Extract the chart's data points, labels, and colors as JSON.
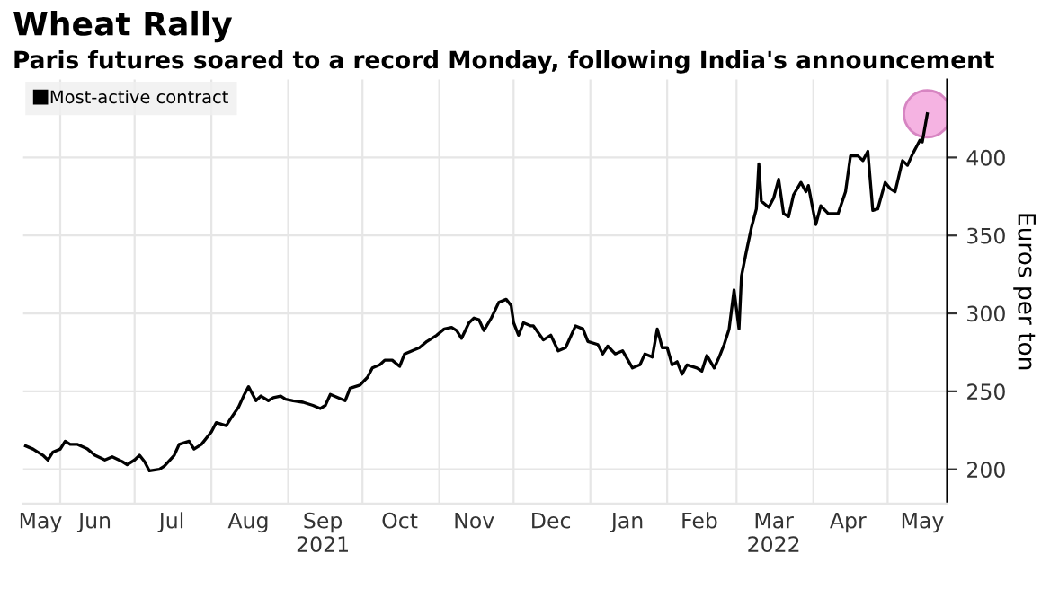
{
  "chart_data": {
    "type": "line",
    "title": "Wheat Rally",
    "subtitle": "Paris futures soared to a record Monday, following India's announcement",
    "ylabel": "Euros per ton",
    "x": [
      "2021-05-18",
      "2021-05-21",
      "2021-05-25",
      "2021-05-27",
      "2021-05-29",
      "2021-06-01",
      "2021-06-03",
      "2021-06-05",
      "2021-06-08",
      "2021-06-12",
      "2021-06-15",
      "2021-06-19",
      "2021-06-22",
      "2021-06-26",
      "2021-06-28",
      "2021-07-01",
      "2021-07-03",
      "2021-07-05",
      "2021-07-07",
      "2021-07-11",
      "2021-07-13",
      "2021-07-17",
      "2021-07-19",
      "2021-07-23",
      "2021-07-25",
      "2021-07-28",
      "2021-08-01",
      "2021-08-03",
      "2021-08-07",
      "2021-08-09",
      "2021-08-12",
      "2021-08-14",
      "2021-08-16",
      "2021-08-19",
      "2021-08-21",
      "2021-08-24",
      "2021-08-26",
      "2021-08-29",
      "2021-08-31",
      "2021-09-03",
      "2021-09-07",
      "2021-09-11",
      "2021-09-14",
      "2021-09-16",
      "2021-09-18",
      "2021-09-21",
      "2021-09-24",
      "2021-09-26",
      "2021-09-30",
      "2021-10-03",
      "2021-10-05",
      "2021-10-08",
      "2021-10-10",
      "2021-10-13",
      "2021-10-16",
      "2021-10-18",
      "2021-10-21",
      "2021-10-24",
      "2021-10-27",
      "2021-10-31",
      "2021-11-03",
      "2021-11-06",
      "2021-11-08",
      "2021-11-10",
      "2021-11-13",
      "2021-11-15",
      "2021-11-17",
      "2021-11-19",
      "2021-11-22",
      "2021-11-25",
      "2021-11-28",
      "2021-11-30",
      "2021-12-01",
      "2021-12-03",
      "2021-12-05",
      "2021-12-08",
      "2021-12-09",
      "2021-12-13",
      "2021-12-16",
      "2021-12-19",
      "2021-12-22",
      "2021-12-26",
      "2021-12-29",
      "2021-12-31",
      "2022-01-04",
      "2022-01-06",
      "2022-01-08",
      "2022-01-11",
      "2022-01-14",
      "2022-01-18",
      "2022-01-21",
      "2022-01-23",
      "2022-01-26",
      "2022-01-28",
      "2022-01-30",
      "2022-02-01",
      "2022-02-03",
      "2022-02-05",
      "2022-02-07",
      "2022-02-09",
      "2022-02-13",
      "2022-02-15",
      "2022-02-17",
      "2022-02-20",
      "2022-02-22",
      "2022-02-24",
      "2022-02-26",
      "2022-02-28",
      "2022-03-02",
      "2022-03-03",
      "2022-03-05",
      "2022-03-07",
      "2022-03-09",
      "2022-03-10",
      "2022-03-11",
      "2022-03-14",
      "2022-03-16",
      "2022-03-18",
      "2022-03-20",
      "2022-03-22",
      "2022-03-24",
      "2022-03-27",
      "2022-03-29",
      "2022-03-30",
      "2022-04-02",
      "2022-04-04",
      "2022-04-07",
      "2022-04-11",
      "2022-04-14",
      "2022-04-16",
      "2022-04-19",
      "2022-04-21",
      "2022-04-23",
      "2022-04-25",
      "2022-04-27",
      "2022-04-30",
      "2022-05-02",
      "2022-05-04",
      "2022-05-07",
      "2022-05-09",
      "2022-05-11",
      "2022-05-14",
      "2022-05-15",
      "2022-05-17"
    ],
    "series": [
      {
        "name": "Most-active contract",
        "color": "#000000",
        "values": [
          215,
          213,
          209,
          206,
          211,
          213,
          218,
          216,
          216,
          213,
          209,
          206,
          208,
          205,
          203,
          206,
          209,
          205,
          199,
          200,
          202,
          209,
          216,
          218,
          213,
          216,
          224,
          230,
          228,
          233,
          240,
          247,
          253,
          244,
          247,
          244,
          246,
          247,
          245,
          244,
          243,
          241,
          239,
          241,
          248,
          246,
          244,
          252,
          254,
          259,
          265,
          267,
          270,
          270,
          266,
          274,
          276,
          278,
          282,
          286,
          290,
          291,
          289,
          284,
          294,
          297,
          296,
          289,
          297,
          307,
          309,
          305,
          294,
          286,
          294,
          292,
          292,
          283,
          286,
          276,
          278,
          292,
          290,
          282,
          280,
          274,
          279,
          274,
          276,
          265,
          267,
          274,
          272,
          290,
          278,
          278,
          267,
          269,
          261,
          267,
          265,
          263,
          273,
          265,
          272,
          280,
          290,
          315,
          290,
          324,
          340,
          355,
          367,
          396,
          372,
          368,
          374,
          386,
          364,
          362,
          376,
          384,
          378,
          382,
          357,
          369,
          364,
          364,
          378,
          401,
          401,
          398,
          404,
          366,
          367,
          384,
          380,
          378,
          398,
          395,
          402,
          411,
          410,
          428
        ]
      }
    ],
    "ylim": [
      178,
      450
    ],
    "yticks": [
      200,
      250,
      300,
      350,
      400
    ],
    "xlim": [
      "2021-05-17",
      "2022-05-25"
    ],
    "xticks": [
      {
        "value": "2021-06-01",
        "label": null
      },
      {
        "value": "2021-07-01",
        "label": null
      },
      {
        "value": "2021-08-01",
        "label": null
      },
      {
        "value": "2021-09-01",
        "label": null
      },
      {
        "value": "2021-10-01",
        "label": null
      },
      {
        "value": "2021-11-01",
        "label": null
      },
      {
        "value": "2021-12-01",
        "label": null
      },
      {
        "value": "2022-01-01",
        "label": null
      },
      {
        "value": "2022-02-01",
        "label": null
      },
      {
        "value": "2022-03-01",
        "label": null
      },
      {
        "value": "2022-04-01",
        "label": null
      },
      {
        "value": "2022-05-01",
        "label": null
      },
      {
        "value": "2021-05-24",
        "label": "May"
      },
      {
        "value": "2021-06-15",
        "label": "Jun"
      },
      {
        "value": "2021-07-16",
        "label": "Jul"
      },
      {
        "value": "2021-08-16",
        "label": "Aug"
      },
      {
        "value": "2021-09-15",
        "label": "Sep\n2021"
      },
      {
        "value": "2021-10-16",
        "label": "Oct"
      },
      {
        "value": "2021-11-15",
        "label": "Nov"
      },
      {
        "value": "2021-12-16",
        "label": "Dec"
      },
      {
        "value": "2022-01-16",
        "label": "Jan"
      },
      {
        "value": "2022-02-14",
        "label": "Feb"
      },
      {
        "value": "2022-03-16",
        "label": "Mar\n2022"
      },
      {
        "value": "2022-04-15",
        "label": "Apr"
      },
      {
        "value": "2022-05-15",
        "label": "May"
      }
    ],
    "grid": true,
    "legend": "top left",
    "line_style": "solid",
    "marker": "none"
  }
}
